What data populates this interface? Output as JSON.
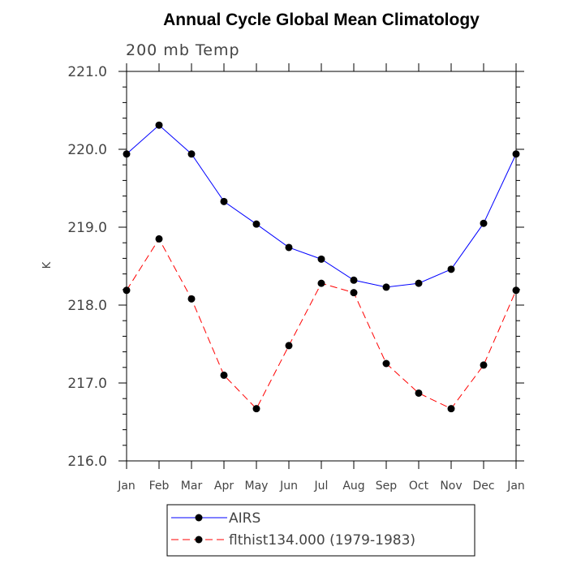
{
  "chart_data": {
    "type": "line",
    "title": "Annual Cycle Global Mean Climatology",
    "subtitle": "200 mb Temp",
    "xlabel": "",
    "ylabel": "K",
    "categories": [
      "Jan",
      "Feb",
      "Mar",
      "Apr",
      "May",
      "Jun",
      "Jul",
      "Aug",
      "Sep",
      "Oct",
      "Nov",
      "Dec",
      "Jan"
    ],
    "ylim": [
      216.0,
      221.0
    ],
    "yticks": [
      "216.0",
      "217.0",
      "218.0",
      "219.0",
      "220.0",
      "221.0"
    ],
    "grid": false,
    "legend_position": "bottom",
    "series": [
      {
        "name": "AIRS",
        "color": "#0000ff",
        "dash": "solid",
        "values": [
          219.94,
          220.31,
          219.94,
          219.33,
          219.04,
          218.74,
          218.59,
          218.32,
          218.23,
          218.28,
          218.46,
          219.05,
          219.94
        ]
      },
      {
        "name": "flthist134.000 (1979-1983)",
        "color": "#ff0000",
        "dash": "dashed",
        "values": [
          218.19,
          218.85,
          218.08,
          217.1,
          216.67,
          217.48,
          218.28,
          218.16,
          217.25,
          216.87,
          216.67,
          217.23,
          218.19
        ]
      }
    ]
  }
}
